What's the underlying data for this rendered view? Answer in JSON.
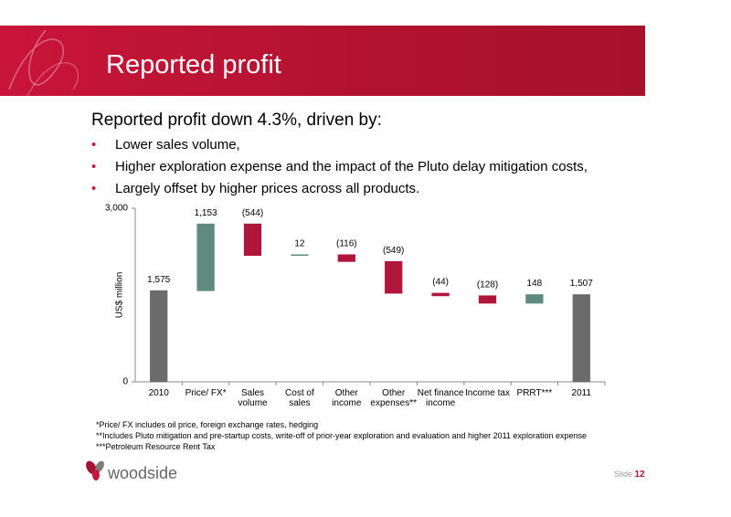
{
  "header": {
    "title": "Reported profit"
  },
  "headline": "Reported profit down 4.3%, driven by:",
  "bullets": [
    "Lower sales volume,",
    "Higher exploration expense and the impact of the Pluto delay mitigation costs,",
    "Largely offset by higher prices across all products."
  ],
  "chart_data": {
    "type": "waterfall",
    "y_label": "US$ million",
    "categories": [
      "2010",
      "Price/ FX*",
      "Sales volume",
      "Cost of sales",
      "Other income",
      "Other expenses**",
      "Net finance income",
      "Income tax",
      "PRRT***",
      "2011"
    ],
    "values": [
      1575,
      1153,
      -544,
      12,
      -116,
      -549,
      -44,
      -128,
      148,
      1507
    ],
    "value_labels": [
      "1,575",
      "1,153",
      "(544)",
      "12",
      "(116)",
      "(549)",
      "(44)",
      "(128)",
      "148",
      "1,507"
    ],
    "total_color": "#6b6b6b",
    "increase_color": "#5f8a80",
    "decrease_color": "#b0163a",
    "ylim": [
      0,
      3000
    ],
    "yticks": [
      0,
      {
        "value": 3000,
        "label": "3,000"
      }
    ]
  },
  "footnotes": [
    "*Price/ FX includes oil price, foreign exchange rates, hedging",
    "**Includes Pluto mitigation and pre-startup costs, write-off of prior-year exploration and evaluation and higher 2011 exploration expense",
    "***Petroleum Resource Rent Tax"
  ],
  "footer": {
    "logo": "woodside",
    "slide_label": "Slide",
    "slide_number": "12"
  }
}
